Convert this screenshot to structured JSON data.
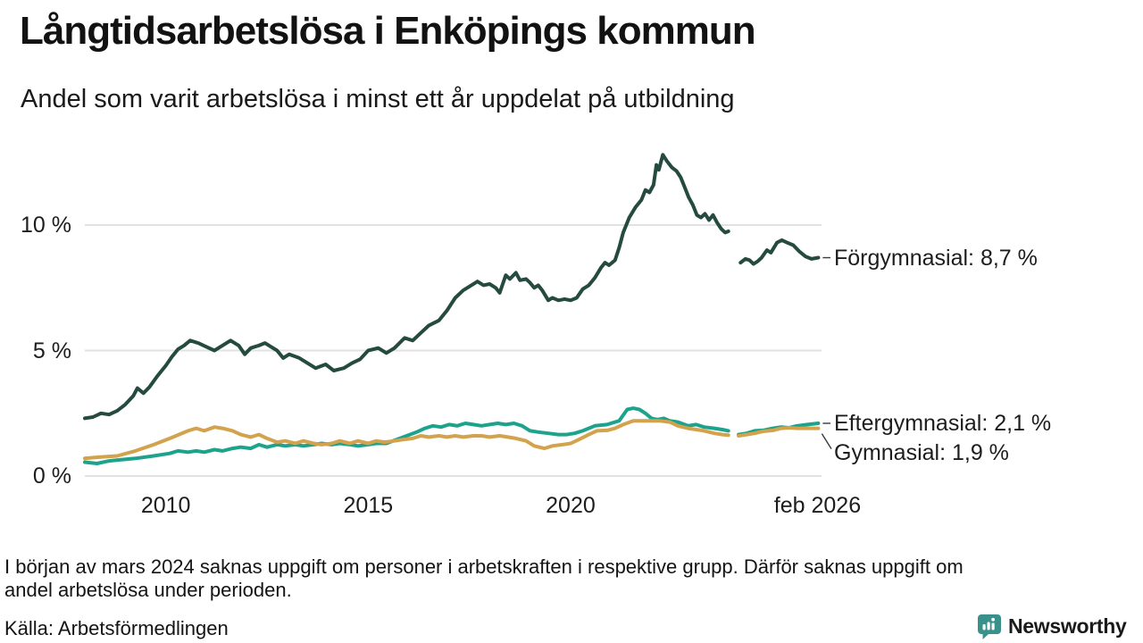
{
  "header": {
    "title": "Långtidsarbetslösa i Enköpings kommun",
    "subtitle": "Andel som varit arbetslösa i minst ett år uppdelat på utbildning"
  },
  "chart_data": {
    "type": "line",
    "unit": "%",
    "x_domain": [
      2008.0,
      2026.2
    ],
    "y_domain": [
      0,
      13
    ],
    "grid": true,
    "grid_color": "#e2e2e2",
    "connector_color": "#3a3a3a",
    "yticks": [
      {
        "value": 0,
        "label": "0 %"
      },
      {
        "value": 5,
        "label": "5 %"
      },
      {
        "value": 10,
        "label": "10 %"
      }
    ],
    "xticks": [
      {
        "value": 2010,
        "label": "2010"
      },
      {
        "value": 2015,
        "label": "2015"
      },
      {
        "value": 2020,
        "label": "2020"
      },
      {
        "value": 2026.1,
        "label": "feb 2026"
      }
    ],
    "series": [
      {
        "name": "Förgymnasial",
        "color": "#254a40",
        "label": "Förgymnasial: 8,7 %",
        "last_value": "8,7 %",
        "label_dy": 0,
        "points": [
          [
            2008.0,
            2.3
          ],
          [
            2008.2,
            2.35
          ],
          [
            2008.4,
            2.5
          ],
          [
            2008.6,
            2.45
          ],
          [
            2008.8,
            2.6
          ],
          [
            2009.0,
            2.85
          ],
          [
            2009.2,
            3.2
          ],
          [
            2009.3,
            3.5
          ],
          [
            2009.45,
            3.3
          ],
          [
            2009.6,
            3.55
          ],
          [
            2009.8,
            4.0
          ],
          [
            2010.0,
            4.4
          ],
          [
            2010.15,
            4.75
          ],
          [
            2010.3,
            5.05
          ],
          [
            2010.45,
            5.2
          ],
          [
            2010.6,
            5.4
          ],
          [
            2010.8,
            5.3
          ],
          [
            2011.0,
            5.15
          ],
          [
            2011.2,
            5.0
          ],
          [
            2011.4,
            5.2
          ],
          [
            2011.6,
            5.4
          ],
          [
            2011.8,
            5.2
          ],
          [
            2011.95,
            4.85
          ],
          [
            2012.1,
            5.1
          ],
          [
            2012.3,
            5.2
          ],
          [
            2012.45,
            5.3
          ],
          [
            2012.6,
            5.15
          ],
          [
            2012.75,
            5.0
          ],
          [
            2012.9,
            4.7
          ],
          [
            2013.05,
            4.85
          ],
          [
            2013.3,
            4.7
          ],
          [
            2013.5,
            4.5
          ],
          [
            2013.7,
            4.3
          ],
          [
            2013.95,
            4.45
          ],
          [
            2014.15,
            4.2
          ],
          [
            2014.4,
            4.3
          ],
          [
            2014.6,
            4.5
          ],
          [
            2014.8,
            4.65
          ],
          [
            2015.0,
            5.0
          ],
          [
            2015.25,
            5.1
          ],
          [
            2015.45,
            4.9
          ],
          [
            2015.65,
            5.1
          ],
          [
            2015.9,
            5.5
          ],
          [
            2016.1,
            5.4
          ],
          [
            2016.3,
            5.7
          ],
          [
            2016.5,
            6.0
          ],
          [
            2016.75,
            6.2
          ],
          [
            2016.95,
            6.6
          ],
          [
            2017.15,
            7.1
          ],
          [
            2017.35,
            7.4
          ],
          [
            2017.55,
            7.6
          ],
          [
            2017.7,
            7.75
          ],
          [
            2017.85,
            7.6
          ],
          [
            2018.0,
            7.65
          ],
          [
            2018.15,
            7.5
          ],
          [
            2018.25,
            7.3
          ],
          [
            2018.4,
            8.0
          ],
          [
            2018.5,
            7.85
          ],
          [
            2018.65,
            8.1
          ],
          [
            2018.75,
            7.8
          ],
          [
            2018.9,
            7.85
          ],
          [
            2019.0,
            7.7
          ],
          [
            2019.1,
            7.5
          ],
          [
            2019.2,
            7.6
          ],
          [
            2019.3,
            7.4
          ],
          [
            2019.45,
            7.0
          ],
          [
            2019.55,
            7.1
          ],
          [
            2019.7,
            7.0
          ],
          [
            2019.85,
            7.05
          ],
          [
            2020.0,
            7.0
          ],
          [
            2020.15,
            7.1
          ],
          [
            2020.3,
            7.45
          ],
          [
            2020.45,
            7.6
          ],
          [
            2020.6,
            7.9
          ],
          [
            2020.75,
            8.3
          ],
          [
            2020.85,
            8.5
          ],
          [
            2020.95,
            8.4
          ],
          [
            2021.1,
            8.6
          ],
          [
            2021.2,
            9.1
          ],
          [
            2021.3,
            9.7
          ],
          [
            2021.45,
            10.3
          ],
          [
            2021.6,
            10.7
          ],
          [
            2021.75,
            11.0
          ],
          [
            2021.85,
            11.4
          ],
          [
            2021.95,
            11.3
          ],
          [
            2022.05,
            11.6
          ],
          [
            2022.12,
            12.4
          ],
          [
            2022.18,
            12.2
          ],
          [
            2022.28,
            12.8
          ],
          [
            2022.38,
            12.55
          ],
          [
            2022.5,
            12.3
          ],
          [
            2022.62,
            12.15
          ],
          [
            2022.72,
            11.9
          ],
          [
            2022.82,
            11.5
          ],
          [
            2022.92,
            11.1
          ],
          [
            2023.02,
            10.8
          ],
          [
            2023.12,
            10.4
          ],
          [
            2023.22,
            10.3
          ],
          [
            2023.32,
            10.45
          ],
          [
            2023.42,
            10.2
          ],
          [
            2023.52,
            10.4
          ],
          [
            2023.62,
            10.1
          ],
          [
            2023.72,
            9.85
          ],
          [
            2023.82,
            9.7
          ],
          [
            2023.9,
            9.75
          ],
          null,
          [
            2024.2,
            8.5
          ],
          [
            2024.32,
            8.65
          ],
          [
            2024.42,
            8.6
          ],
          [
            2024.52,
            8.45
          ],
          [
            2024.62,
            8.55
          ],
          [
            2024.72,
            8.7
          ],
          [
            2024.85,
            9.0
          ],
          [
            2024.95,
            8.9
          ],
          [
            2025.1,
            9.3
          ],
          [
            2025.22,
            9.4
          ],
          [
            2025.35,
            9.3
          ],
          [
            2025.5,
            9.2
          ],
          [
            2025.65,
            8.95
          ],
          [
            2025.8,
            8.75
          ],
          [
            2025.95,
            8.65
          ],
          [
            2026.12,
            8.7
          ]
        ]
      },
      {
        "name": "Eftergymnasial",
        "color": "#1da38c",
        "label": "Eftergymnasial: 2,1 %",
        "last_value": "2,1 %",
        "label_dy": 0,
        "points": [
          [
            2008.0,
            0.55
          ],
          [
            2008.3,
            0.5
          ],
          [
            2008.6,
            0.6
          ],
          [
            2008.9,
            0.65
          ],
          [
            2009.25,
            0.7
          ],
          [
            2009.7,
            0.8
          ],
          [
            2010.1,
            0.9
          ],
          [
            2010.3,
            1.0
          ],
          [
            2010.55,
            0.95
          ],
          [
            2010.75,
            1.0
          ],
          [
            2010.95,
            0.95
          ],
          [
            2011.2,
            1.05
          ],
          [
            2011.4,
            1.0
          ],
          [
            2011.65,
            1.1
          ],
          [
            2011.85,
            1.15
          ],
          [
            2012.1,
            1.1
          ],
          [
            2012.3,
            1.25
          ],
          [
            2012.5,
            1.15
          ],
          [
            2012.75,
            1.25
          ],
          [
            2012.95,
            1.2
          ],
          [
            2013.2,
            1.25
          ],
          [
            2013.4,
            1.2
          ],
          [
            2013.65,
            1.25
          ],
          [
            2013.85,
            1.3
          ],
          [
            2014.1,
            1.25
          ],
          [
            2014.3,
            1.3
          ],
          [
            2014.55,
            1.25
          ],
          [
            2014.75,
            1.2
          ],
          [
            2015.0,
            1.25
          ],
          [
            2015.2,
            1.3
          ],
          [
            2015.45,
            1.3
          ],
          [
            2015.7,
            1.45
          ],
          [
            2015.95,
            1.6
          ],
          [
            2016.2,
            1.75
          ],
          [
            2016.4,
            1.9
          ],
          [
            2016.6,
            2.0
          ],
          [
            2016.8,
            1.95
          ],
          [
            2017.0,
            2.05
          ],
          [
            2017.2,
            2.0
          ],
          [
            2017.4,
            2.1
          ],
          [
            2017.6,
            2.05
          ],
          [
            2017.8,
            2.0
          ],
          [
            2018.0,
            2.05
          ],
          [
            2018.2,
            2.1
          ],
          [
            2018.4,
            2.05
          ],
          [
            2018.6,
            2.1
          ],
          [
            2018.8,
            2.0
          ],
          [
            2019.0,
            1.8
          ],
          [
            2019.2,
            1.75
          ],
          [
            2019.45,
            1.7
          ],
          [
            2019.7,
            1.65
          ],
          [
            2019.9,
            1.65
          ],
          [
            2020.1,
            1.7
          ],
          [
            2020.3,
            1.8
          ],
          [
            2020.6,
            2.0
          ],
          [
            2020.9,
            2.05
          ],
          [
            2021.2,
            2.2
          ],
          [
            2021.4,
            2.65
          ],
          [
            2021.55,
            2.7
          ],
          [
            2021.7,
            2.65
          ],
          [
            2021.85,
            2.5
          ],
          [
            2022.0,
            2.3
          ],
          [
            2022.15,
            2.25
          ],
          [
            2022.3,
            2.3
          ],
          [
            2022.45,
            2.2
          ],
          [
            2022.65,
            2.15
          ],
          [
            2022.9,
            2.0
          ],
          [
            2023.1,
            2.05
          ],
          [
            2023.3,
            1.95
          ],
          [
            2023.55,
            1.9
          ],
          [
            2023.75,
            1.85
          ],
          [
            2023.9,
            1.8
          ],
          null,
          [
            2024.15,
            1.65
          ],
          [
            2024.35,
            1.7
          ],
          [
            2024.55,
            1.8
          ],
          [
            2024.75,
            1.82
          ],
          [
            2025.0,
            1.9
          ],
          [
            2025.2,
            1.95
          ],
          [
            2025.4,
            1.92
          ],
          [
            2025.6,
            2.0
          ],
          [
            2025.85,
            2.05
          ],
          [
            2026.12,
            2.1
          ]
        ]
      },
      {
        "name": "Gymnasial",
        "color": "#d2a24c",
        "label": "Gymnasial: 1,9 %",
        "last_value": "1,9 %",
        "label_dy": 27,
        "points": [
          [
            2008.0,
            0.7
          ],
          [
            2008.35,
            0.75
          ],
          [
            2008.8,
            0.8
          ],
          [
            2009.25,
            1.0
          ],
          [
            2009.7,
            1.25
          ],
          [
            2010.1,
            1.5
          ],
          [
            2010.55,
            1.8
          ],
          [
            2010.75,
            1.9
          ],
          [
            2010.95,
            1.8
          ],
          [
            2011.2,
            1.95
          ],
          [
            2011.4,
            1.9
          ],
          [
            2011.65,
            1.8
          ],
          [
            2011.85,
            1.65
          ],
          [
            2012.1,
            1.55
          ],
          [
            2012.3,
            1.65
          ],
          [
            2012.5,
            1.5
          ],
          [
            2012.75,
            1.35
          ],
          [
            2012.95,
            1.4
          ],
          [
            2013.2,
            1.3
          ],
          [
            2013.4,
            1.4
          ],
          [
            2013.65,
            1.3
          ],
          [
            2013.85,
            1.25
          ],
          [
            2014.1,
            1.3
          ],
          [
            2014.3,
            1.4
          ],
          [
            2014.55,
            1.3
          ],
          [
            2014.75,
            1.4
          ],
          [
            2015.0,
            1.3
          ],
          [
            2015.2,
            1.4
          ],
          [
            2015.4,
            1.35
          ],
          [
            2015.65,
            1.4
          ],
          [
            2015.85,
            1.45
          ],
          [
            2016.1,
            1.5
          ],
          [
            2016.3,
            1.6
          ],
          [
            2016.5,
            1.55
          ],
          [
            2016.75,
            1.6
          ],
          [
            2016.95,
            1.55
          ],
          [
            2017.15,
            1.6
          ],
          [
            2017.35,
            1.55
          ],
          [
            2017.6,
            1.6
          ],
          [
            2017.8,
            1.6
          ],
          [
            2018.0,
            1.55
          ],
          [
            2018.25,
            1.6
          ],
          [
            2018.45,
            1.55
          ],
          [
            2018.65,
            1.5
          ],
          [
            2018.9,
            1.4
          ],
          [
            2019.1,
            1.2
          ],
          [
            2019.35,
            1.1
          ],
          [
            2019.55,
            1.2
          ],
          [
            2019.8,
            1.25
          ],
          [
            2020.0,
            1.3
          ],
          [
            2020.2,
            1.45
          ],
          [
            2020.45,
            1.65
          ],
          [
            2020.65,
            1.8
          ],
          [
            2020.9,
            1.82
          ],
          [
            2021.1,
            1.9
          ],
          [
            2021.3,
            2.05
          ],
          [
            2021.55,
            2.2
          ],
          [
            2021.75,
            2.2
          ],
          [
            2022.0,
            2.2
          ],
          [
            2022.2,
            2.2
          ],
          [
            2022.45,
            2.15
          ],
          [
            2022.65,
            2.0
          ],
          [
            2022.9,
            1.9
          ],
          [
            2023.1,
            1.85
          ],
          [
            2023.3,
            1.8
          ],
          [
            2023.55,
            1.7
          ],
          [
            2023.75,
            1.65
          ],
          [
            2023.9,
            1.63
          ],
          null,
          [
            2024.15,
            1.6
          ],
          [
            2024.35,
            1.65
          ],
          [
            2024.55,
            1.7
          ],
          [
            2024.75,
            1.78
          ],
          [
            2025.0,
            1.82
          ],
          [
            2025.2,
            1.9
          ],
          [
            2025.4,
            1.92
          ],
          [
            2025.6,
            1.9
          ],
          [
            2025.85,
            1.9
          ],
          [
            2026.12,
            1.9
          ]
        ]
      }
    ]
  },
  "footnote": {
    "line1": "I början av mars 2024 saknas uppgift om personer i arbetskraften i respektive grupp. Därför saknas uppgift om",
    "line2": "andel arbetslösa under perioden."
  },
  "source": "Källa: Arbetsförmedlingen",
  "logo": {
    "text": "Newsworthy",
    "icon_color": "#38928b",
    "text_color": "#2d8c86"
  }
}
